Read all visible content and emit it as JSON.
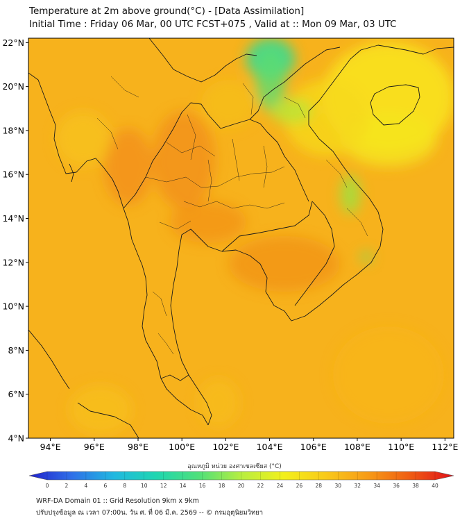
{
  "header": {
    "title_line1": "Temperature at 2m above ground(°C) - [Data Assimilation]",
    "title_line2": "Initial Time : Friday 06 Mar, 00 UTC FCST+075 , Valid at :: Mon 09 Mar, 03 UTC"
  },
  "map": {
    "lat_labels": [
      "4°N",
      "6°N",
      "8°N",
      "10°N",
      "12°N",
      "14°N",
      "16°N",
      "18°N",
      "20°N",
      "22°N"
    ],
    "lat_values": [
      4,
      6,
      8,
      10,
      12,
      14,
      16,
      18,
      20,
      22
    ],
    "lon_labels": [
      "94°E",
      "96°E",
      "98°E",
      "100°E",
      "102°E",
      "104°E",
      "106°E",
      "108°E",
      "110°E",
      "112°E"
    ],
    "lon_values": [
      94,
      96,
      98,
      100,
      102,
      104,
      106,
      108,
      110,
      112
    ],
    "extent": {
      "lon_min": 93,
      "lon_max": 112.4,
      "lat_min": 4,
      "lat_max": 22.2
    },
    "background_color": "#f7b21c",
    "land_outline_color": "#1a1a1a"
  },
  "colorbar": {
    "title": "อุณหภูมิ หน่วย องศาเซลเซียส (°C)",
    "tick_labels": [
      "0",
      "2",
      "4",
      "6",
      "8",
      "10",
      "12",
      "14",
      "16",
      "18",
      "20",
      "22",
      "24",
      "26",
      "28",
      "30",
      "32",
      "34",
      "36",
      "38",
      "40"
    ],
    "min": 0,
    "max": 40,
    "colors": [
      "#2222cc",
      "#2f6fe8",
      "#20b8e0",
      "#1fd6b0",
      "#4fe07a",
      "#b8ee40",
      "#f3f01a",
      "#f9c91a",
      "#f79a17",
      "#ef5a12",
      "#e0101a"
    ]
  },
  "footer": {
    "line1": "WRF-DA Domain 01 :: Grid Resolution 9km x 9km",
    "line2": "ปรับปรุงข้อมูล ณ เวลา 07:00น. วัน ศ. ที่ 06 มี.ค. 2569 -- © กรมอุตุนิยมวิทยา"
  }
}
